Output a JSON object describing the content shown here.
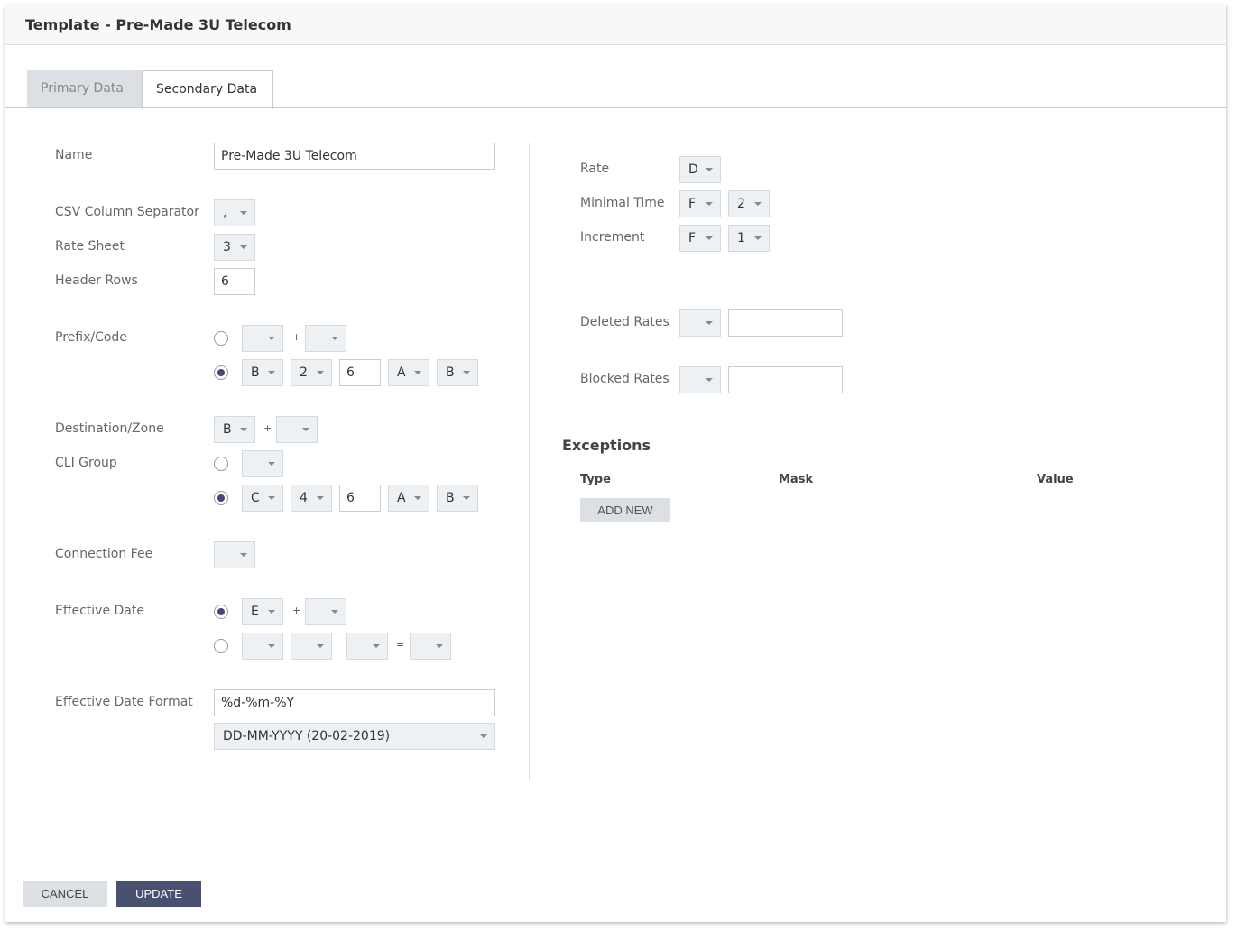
{
  "title": "Template - Pre-Made 3U Telecom",
  "tabs": [
    {
      "label": "Primary Data",
      "active": false
    },
    {
      "label": "Secondary Data",
      "active": true
    }
  ],
  "left": {
    "name": {
      "label": "Name",
      "value": "Pre-Made 3U Telecom"
    },
    "csv_separator": {
      "label": "CSV Column Separator",
      "value": ","
    },
    "rate_sheet": {
      "label": "Rate Sheet",
      "value": "3"
    },
    "header_rows": {
      "label": "Header Rows",
      "value": "6"
    },
    "prefix_code": {
      "label": "Prefix/Code",
      "plus": "+",
      "opt1": {
        "selected": false,
        "a": "",
        "b": ""
      },
      "opt2": {
        "selected": true,
        "col": "B",
        "n": "2",
        "num": "6",
        "a": "A",
        "b": "B"
      }
    },
    "destination_zone": {
      "label": "Destination/Zone",
      "col": "B",
      "plus": "+",
      "extra": ""
    },
    "cli_group": {
      "label": "CLI Group",
      "opt1": {
        "selected": false,
        "a": ""
      },
      "opt2": {
        "selected": true,
        "col": "C",
        "n": "4",
        "num": "6",
        "a": "A",
        "b": "B"
      }
    },
    "connection_fee": {
      "label": "Connection Fee",
      "value": ""
    },
    "effective_date": {
      "label": "Effective Date",
      "plus": "+",
      "eq": "=",
      "opt1": {
        "selected": true,
        "col": "E",
        "extra": ""
      },
      "opt2": {
        "selected": false,
        "a": "",
        "b": "",
        "c": "",
        "d": ""
      }
    },
    "effective_date_format": {
      "label": "Effective Date Format",
      "value": "%d-%m-%Y",
      "preset": "DD-MM-YYYY (20-02-2019)"
    }
  },
  "right": {
    "rate": {
      "label": "Rate",
      "value": "D"
    },
    "minimal_time": {
      "label": "Minimal Time",
      "col": "F",
      "n": "2"
    },
    "increment": {
      "label": "Increment",
      "col": "F",
      "n": "1"
    },
    "deleted_rates": {
      "label": "Deleted Rates",
      "select": "",
      "value": ""
    },
    "blocked_rates": {
      "label": "Blocked Rates",
      "select": "",
      "value": ""
    },
    "exceptions": {
      "title": "Exceptions",
      "columns": [
        "Type",
        "Mask",
        "Value"
      ],
      "add_label": "ADD NEW"
    }
  },
  "footer": {
    "cancel": "CANCEL",
    "update": "UPDATE"
  },
  "colors": {
    "primary": "#4a5170",
    "secondary": "#dcdfe3",
    "radio": "#44477a"
  }
}
